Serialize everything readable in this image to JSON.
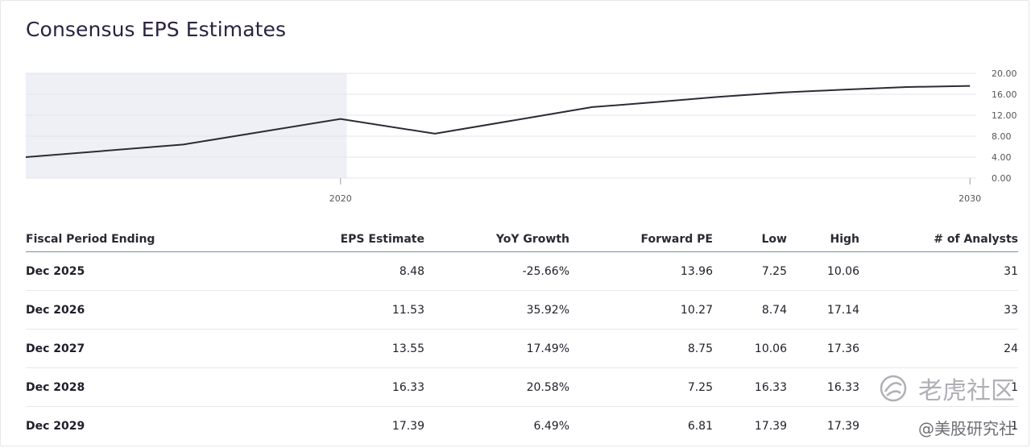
{
  "title": "Consensus EPS Estimates",
  "chart_data": {
    "type": "line",
    "x": [
      2015,
      2017.5,
      2020,
      2021.5,
      2023,
      2024,
      2025,
      2026,
      2027,
      2028,
      2029,
      2030
    ],
    "series": [
      {
        "values": [
          4.0,
          6.4,
          11.3,
          8.48,
          11.53,
          13.55,
          14.5,
          15.5,
          16.33,
          16.9,
          17.39,
          17.6
        ]
      }
    ],
    "xlim": [
      2015.0,
      2030.1
    ],
    "ylim": [
      0,
      20
    ],
    "y_ticks": [
      "20.00",
      "16.00",
      "12.00",
      "8.00",
      "4.00",
      "0.00"
    ],
    "x_ticks": [
      "2020",
      "2030"
    ],
    "shaded_region": [
      2015.0,
      2020.1
    ],
    "grid": true,
    "line_color": "#2e2a36",
    "shade_color": "#eef0f6"
  },
  "table": {
    "headers": [
      "Fiscal Period Ending",
      "EPS Estimate",
      "YoY Growth",
      "Forward PE",
      "Low",
      "High",
      "# of Analysts"
    ],
    "rows": [
      [
        "Dec 2025",
        "8.48",
        "-25.66%",
        "13.96",
        "7.25",
        "10.06",
        "31"
      ],
      [
        "Dec 2026",
        "11.53",
        "35.92%",
        "10.27",
        "8.74",
        "17.14",
        "33"
      ],
      [
        "Dec 2027",
        "13.55",
        "17.49%",
        "8.75",
        "10.06",
        "17.36",
        "24"
      ],
      [
        "Dec 2028",
        "16.33",
        "20.58%",
        "7.25",
        "16.33",
        "16.33",
        "1"
      ],
      [
        "Dec 2029",
        "17.39",
        "6.49%",
        "6.81",
        "17.39",
        "17.39",
        "1"
      ]
    ]
  },
  "watermark": {
    "main": "老虎社区",
    "sub": "@美股研究社",
    "logo_icon": "tiger-logo-icon"
  }
}
